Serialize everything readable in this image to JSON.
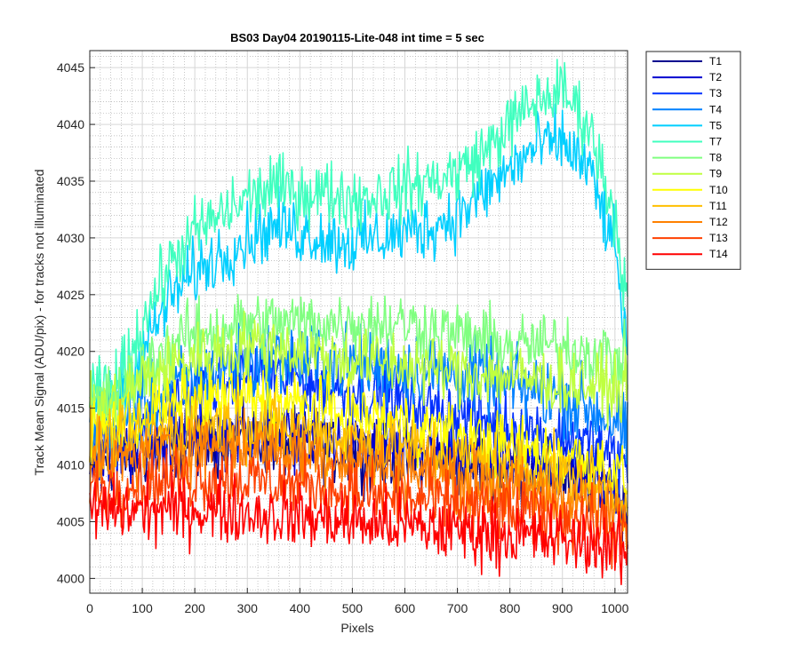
{
  "chart_data": {
    "type": "line",
    "title": "BS03 Day04 20190115-Lite-048 int time = 5 sec",
    "xlabel": "Pixels",
    "ylabel": "Track Mean Signal (ADU/pix) - for tracks not illuminated",
    "xlim": [
      0,
      1024
    ],
    "ylim": [
      3998.7,
      4046.5
    ],
    "xticks": [
      0,
      100,
      200,
      300,
      400,
      500,
      600,
      700,
      800,
      900,
      1000
    ],
    "yticks": [
      4000,
      4005,
      4010,
      4015,
      4020,
      4025,
      4030,
      4035,
      4040,
      4045
    ],
    "grid": "major and minor (dotted)",
    "legend_position": "outside right, top",
    "x": [
      0,
      50,
      100,
      150,
      200,
      250,
      300,
      350,
      400,
      450,
      500,
      550,
      600,
      650,
      700,
      750,
      800,
      850,
      900,
      950,
      1000,
      1024
    ],
    "series": [
      {
        "name": "T1",
        "color": "#00008F",
        "noise": 3,
        "values": [
          4010,
          4010.5,
          4011,
          4011.5,
          4012,
          4012,
          4012.2,
          4012,
          4011.8,
          4011.5,
          4011,
          4010.7,
          4010.4,
          4010.2,
          4010,
          4009.8,
          4009.5,
          4009.2,
          4009,
          4008.5,
          4007.5,
          4005.5
        ]
      },
      {
        "name": "T2",
        "color": "#0000CF",
        "noise": 3,
        "values": [
          4010.5,
          4011,
          4011.5,
          4012,
          4012.5,
          4012.8,
          4013,
          4012.8,
          4012.5,
          4012.2,
          4011.8,
          4011.5,
          4011.2,
          4011,
          4010.8,
          4010.5,
          4010.2,
          4010,
          4009.8,
          4009.3,
          4008.2,
          4006.5
        ]
      },
      {
        "name": "T3",
        "color": "#0030FF",
        "noise": 3,
        "values": [
          4011,
          4012,
          4013.5,
          4015,
          4016.5,
          4017.5,
          4018,
          4018,
          4017.5,
          4017,
          4016.5,
          4016,
          4015.5,
          4015,
          4014.5,
          4014,
          4013.5,
          4013,
          4012.5,
          4012,
          4011,
          4009.5
        ]
      },
      {
        "name": "T4",
        "color": "#0080FF",
        "noise": 3.5,
        "values": [
          4013,
          4013.5,
          4015,
          4016.5,
          4017.5,
          4018.5,
          4019,
          4019.2,
          4019.2,
          4019,
          4018.8,
          4018.6,
          4018.5,
          4018.3,
          4018,
          4017.5,
          4017,
          4016.5,
          4016,
          4015,
          4014,
          4012
        ]
      },
      {
        "name": "T5",
        "color": "#00CFFF",
        "noise": 3,
        "values": [
          4015,
          4016,
          4020,
          4024.5,
          4027,
          4028.5,
          4030,
          4031,
          4030.5,
          4030,
          4029.5,
          4030,
          4030.5,
          4031,
          4032,
          4034,
          4036,
          4038,
          4038.5,
          4036,
          4029,
          4020
        ]
      },
      {
        "name": "T7",
        "color": "#40FFBF",
        "noise": 3,
        "values": [
          4016,
          4017,
          4022.5,
          4027.5,
          4030.5,
          4032,
          4033.5,
          4034.5,
          4034,
          4034,
          4033.5,
          4033.8,
          4034.5,
          4035,
          4035.8,
          4037.5,
          4040,
          4042,
          4043,
          4040,
          4032,
          4024
        ]
      },
      {
        "name": "T8",
        "color": "#80FF80",
        "noise": 3,
        "values": [
          4015,
          4016,
          4018.5,
          4020.5,
          4021.5,
          4022,
          4022.5,
          4022.5,
          4022.5,
          4022.5,
          4022.5,
          4022.5,
          4022.5,
          4022,
          4021.5,
          4021,
          4020.5,
          4020.5,
          4020.5,
          4020,
          4019.5,
          4019
        ]
      },
      {
        "name": "T9",
        "color": "#BFFF40",
        "noise": 3,
        "values": [
          4014.5,
          4015.5,
          4017.5,
          4018.5,
          4019.5,
          4020,
          4020.5,
          4020.5,
          4020,
          4019.5,
          4019.2,
          4019,
          4018.8,
          4018.5,
          4018.2,
          4018,
          4017.8,
          4017.5,
          4017.2,
          4017,
          4016.8,
          4016.5
        ]
      },
      {
        "name": "T10",
        "color": "#FFFF00",
        "noise": 3,
        "values": [
          4013,
          4013.5,
          4014.5,
          4015,
          4015.5,
          4015.8,
          4015.8,
          4015.6,
          4015.2,
          4014.8,
          4014.4,
          4014,
          4013.5,
          4013,
          4012.5,
          4012,
          4011.6,
          4011.2,
          4010.8,
          4010.3,
          4009.5,
          4008.5
        ]
      },
      {
        "name": "T11",
        "color": "#FFBF00",
        "noise": 3,
        "values": [
          4011.5,
          4012,
          4012.5,
          4013,
          4013.3,
          4013.5,
          4013.5,
          4013.3,
          4013,
          4012.6,
          4012.2,
          4011.8,
          4011.4,
          4011,
          4010.6,
          4010.2,
          4009.8,
          4009.4,
          4009,
          4008.5,
          4007.5,
          4006.5
        ]
      },
      {
        "name": "T12",
        "color": "#FF8000",
        "noise": 3,
        "values": [
          4010,
          4010.4,
          4010.8,
          4011.2,
          4011.5,
          4011.6,
          4011.6,
          4011.4,
          4011.1,
          4010.8,
          4010.4,
          4010,
          4009.6,
          4009.2,
          4008.8,
          4008.4,
          4008,
          4007.6,
          4007.2,
          4006.7,
          4005.8,
          4004.5
        ]
      },
      {
        "name": "T13",
        "color": "#FF4000",
        "noise": 3,
        "values": [
          4008,
          4008.2,
          4008.5,
          4008.7,
          4008.8,
          4008.8,
          4008.7,
          4008.5,
          4008.2,
          4007.9,
          4007.6,
          4007.3,
          4007,
          4006.8,
          4006.5,
          4006.2,
          4006,
          4005.7,
          4005.4,
          4005,
          4004.3,
          4003.5
        ]
      },
      {
        "name": "T14",
        "color": "#FF0000",
        "noise": 3,
        "values": [
          4006,
          4006,
          4006,
          4006,
          4006,
          4006,
          4005.8,
          4005.6,
          4005.4,
          4005.2,
          4005,
          4004.8,
          4004.6,
          4004.4,
          4004.2,
          4004,
          4003.8,
          4003.6,
          4003.4,
          4003.2,
          4002.7,
          4002
        ]
      }
    ]
  }
}
